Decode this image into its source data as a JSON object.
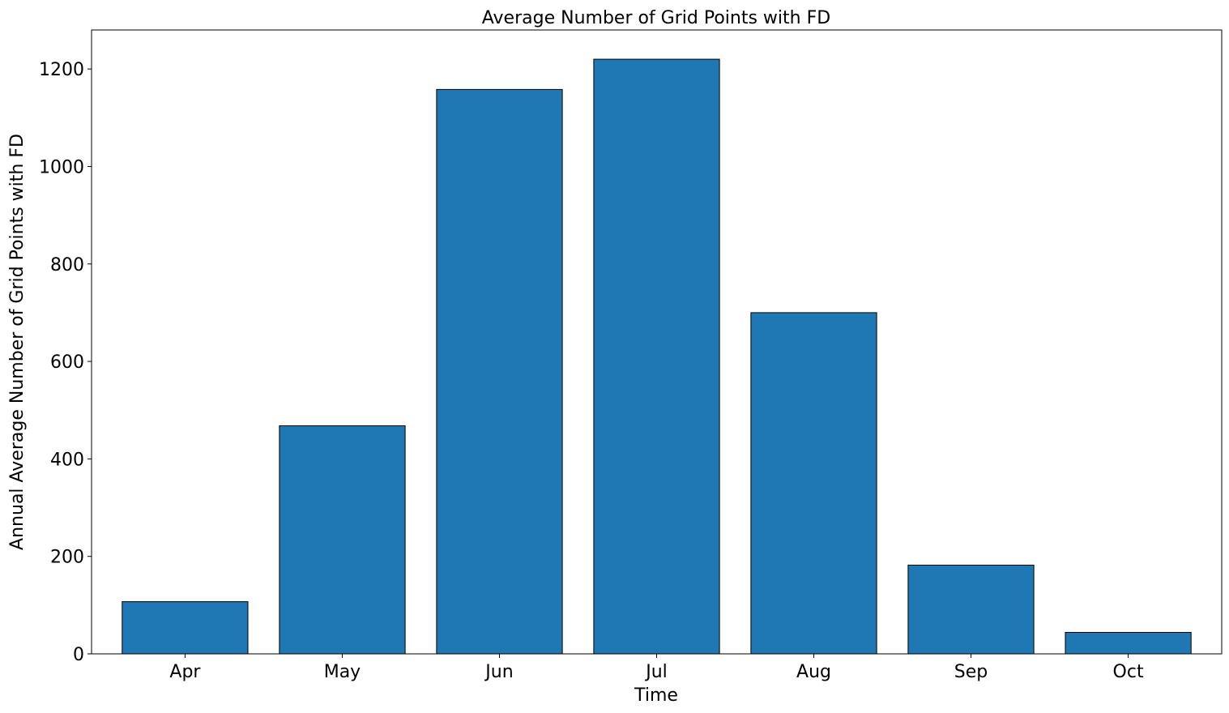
{
  "chart_data": {
    "type": "bar",
    "title": "Average Number of Grid Points with FD",
    "xlabel": "Time",
    "ylabel": "Annual Average Number of Grid Points with FD",
    "categories": [
      "Apr",
      "May",
      "Jun",
      "Jul",
      "Aug",
      "Sep",
      "Oct"
    ],
    "values": [
      107,
      468,
      1158,
      1220,
      700,
      182,
      44
    ],
    "ylim": [
      0,
      1280
    ],
    "yticks": [
      0,
      200,
      400,
      600,
      800,
      1000,
      1200
    ],
    "grid": false,
    "bar_color": "#1f77b4",
    "edge_color": "#000000"
  }
}
